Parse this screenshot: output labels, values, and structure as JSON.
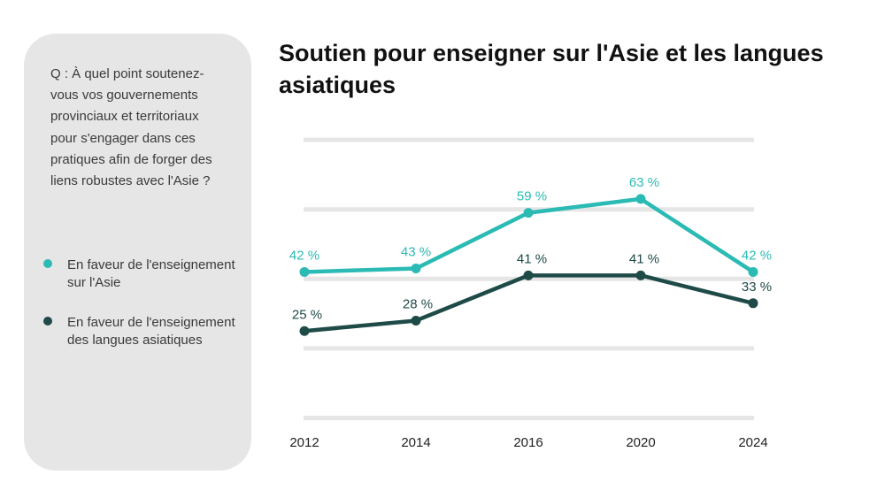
{
  "question": "Q : À quel point soutenez-vous vos gouvernements provinciaux et territoriaux pour s'engager dans ces pratiques afin de forger des liens robustes avec l'Asie ?",
  "legend": [
    {
      "label": "En faveur de l'enseignement sur l'Asie",
      "color": "#2bbab4"
    },
    {
      "label": "En faveur de l'enseignement des langues asiatiques",
      "color": "#1e4a47"
    }
  ],
  "chart_data": {
    "type": "line",
    "title": "Soutien pour enseigner sur l'Asie et les langues asiatiques",
    "categories": [
      "2012",
      "2014",
      "2016",
      "2020",
      "2024"
    ],
    "series": [
      {
        "name": "En faveur de l'enseignement sur l'Asie",
        "values": [
          42,
          43,
          59,
          63,
          42
        ],
        "labels": [
          "42 %",
          "43 %",
          "59 %",
          "63 %",
          "42 %"
        ],
        "color": "#2bbab4"
      },
      {
        "name": "En faveur de l'enseignement des langues asiatiques",
        "values": [
          25,
          28,
          41,
          41,
          33
        ],
        "labels": [
          "25 %",
          "28 %",
          "41 %",
          "41 %",
          "33 %"
        ],
        "color": "#1e4a47"
      }
    ],
    "ylim": [
      0,
      80
    ],
    "grid": true,
    "legend_position": "left"
  }
}
